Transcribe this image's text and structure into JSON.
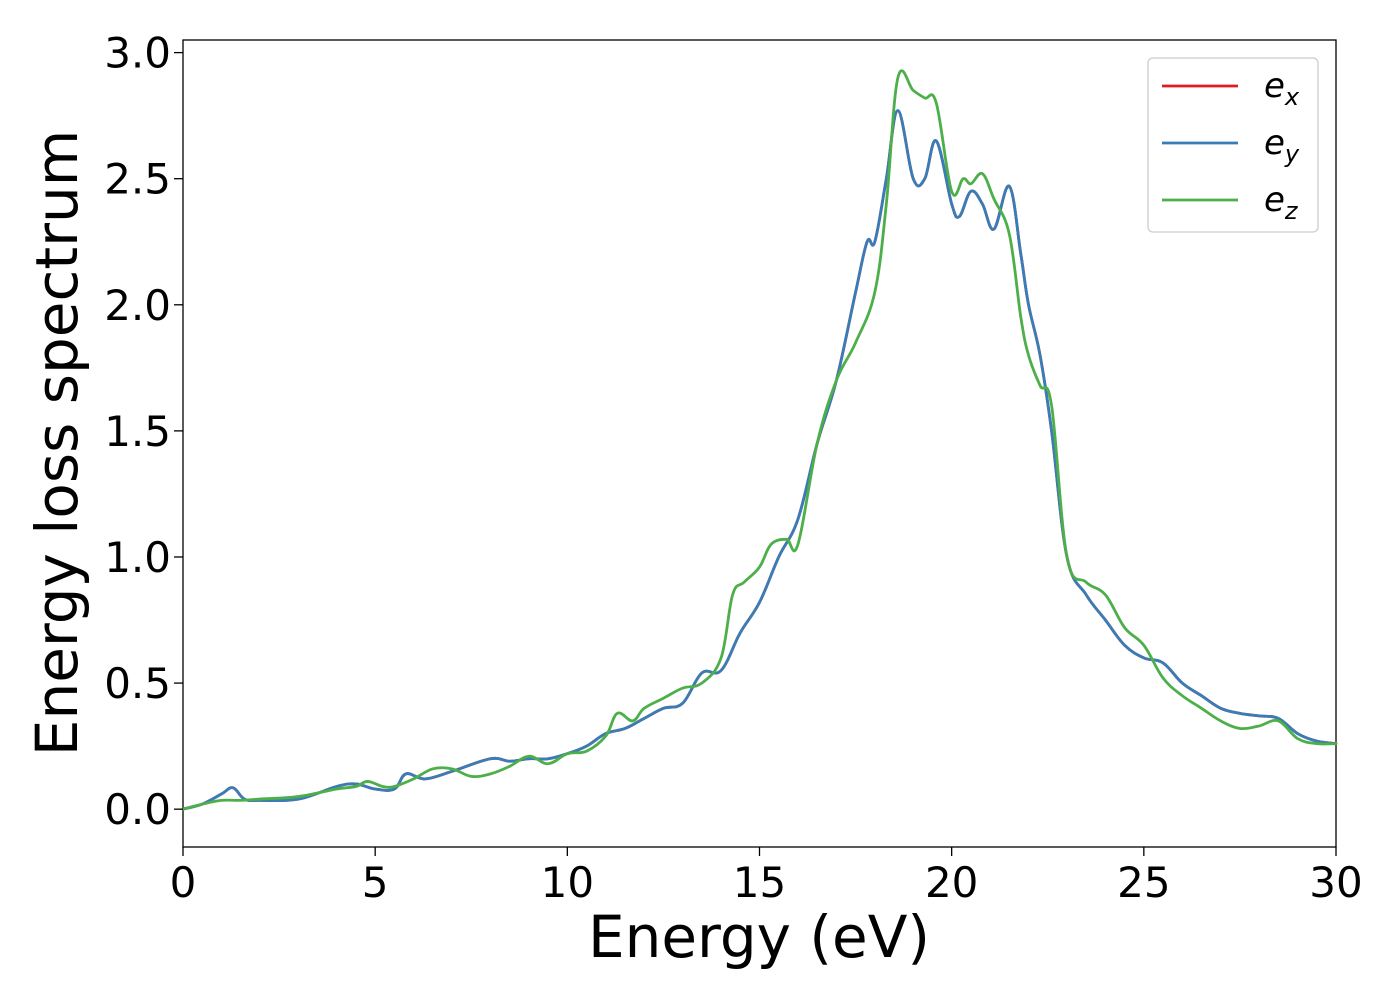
{
  "chart_data": {
    "type": "line",
    "xlabel": "Energy (eV)",
    "ylabel": "Energy loss spectrum",
    "xlim": [
      0,
      30
    ],
    "ylim": [
      -0.15,
      3.05
    ],
    "xticks": [
      0,
      5,
      10,
      15,
      20,
      25,
      30
    ],
    "yticks": [
      0.0,
      0.5,
      1.0,
      1.5,
      2.0,
      2.5,
      3.0
    ],
    "xtick_labels": [
      "0",
      "5",
      "10",
      "15",
      "20",
      "25",
      "30"
    ],
    "ytick_labels": [
      "0.0",
      "0.5",
      "1.0",
      "1.5",
      "2.0",
      "2.5",
      "3.0"
    ],
    "grid": false,
    "legend_position": "top-right",
    "series": [
      {
        "name": "e_x",
        "legend_main": "e",
        "legend_sub": "x",
        "color": "#e41a1c",
        "x": [
          0,
          0.5,
          1.0,
          1.3,
          1.6,
          2.0,
          3.0,
          4.0,
          4.5,
          5.0,
          5.5,
          5.8,
          6.3,
          7.0,
          8.0,
          8.5,
          9.0,
          9.5,
          10.0,
          10.5,
          11.0,
          11.5,
          12.0,
          12.5,
          13.0,
          13.5,
          14.0,
          14.5,
          15.0,
          15.5,
          16.0,
          16.5,
          17.0,
          17.5,
          17.8,
          18.0,
          18.3,
          18.6,
          19.0,
          19.3,
          19.6,
          20.0,
          20.2,
          20.5,
          20.8,
          21.1,
          21.5,
          21.8,
          22.0,
          22.3,
          22.6,
          23.0,
          23.5,
          24.0,
          24.5,
          25.0,
          25.5,
          26.0,
          26.5,
          27.0,
          27.5,
          28.0,
          28.5,
          29.0,
          29.5,
          30.0
        ],
        "y": [
          0.0,
          0.02,
          0.06,
          0.085,
          0.04,
          0.035,
          0.04,
          0.09,
          0.1,
          0.08,
          0.08,
          0.14,
          0.12,
          0.15,
          0.2,
          0.19,
          0.2,
          0.2,
          0.22,
          0.25,
          0.3,
          0.32,
          0.36,
          0.4,
          0.42,
          0.54,
          0.55,
          0.7,
          0.82,
          1.0,
          1.15,
          1.45,
          1.7,
          2.05,
          2.25,
          2.25,
          2.5,
          2.77,
          2.5,
          2.5,
          2.65,
          2.4,
          2.35,
          2.45,
          2.4,
          2.3,
          2.47,
          2.2,
          2.0,
          1.8,
          1.5,
          1.0,
          0.85,
          0.75,
          0.65,
          0.6,
          0.58,
          0.5,
          0.45,
          0.4,
          0.38,
          0.37,
          0.36,
          0.3,
          0.27,
          0.26
        ]
      },
      {
        "name": "e_y",
        "legend_main": "e",
        "legend_sub": "y",
        "color": "#377eb8",
        "x": [
          0,
          0.5,
          1.0,
          1.3,
          1.6,
          2.0,
          3.0,
          4.0,
          4.5,
          5.0,
          5.5,
          5.8,
          6.3,
          7.0,
          8.0,
          8.5,
          9.0,
          9.5,
          10.0,
          10.5,
          11.0,
          11.5,
          12.0,
          12.5,
          13.0,
          13.5,
          14.0,
          14.5,
          15.0,
          15.5,
          16.0,
          16.5,
          17.0,
          17.5,
          17.8,
          18.0,
          18.3,
          18.6,
          19.0,
          19.3,
          19.6,
          20.0,
          20.2,
          20.5,
          20.8,
          21.1,
          21.5,
          21.8,
          22.0,
          22.3,
          22.6,
          23.0,
          23.5,
          24.0,
          24.5,
          25.0,
          25.5,
          26.0,
          26.5,
          27.0,
          27.5,
          28.0,
          28.5,
          29.0,
          29.5,
          30.0
        ],
        "y": [
          0.0,
          0.02,
          0.06,
          0.085,
          0.04,
          0.035,
          0.04,
          0.09,
          0.1,
          0.08,
          0.08,
          0.14,
          0.12,
          0.15,
          0.2,
          0.19,
          0.2,
          0.2,
          0.22,
          0.25,
          0.3,
          0.32,
          0.36,
          0.4,
          0.42,
          0.54,
          0.55,
          0.7,
          0.82,
          1.0,
          1.15,
          1.45,
          1.7,
          2.05,
          2.25,
          2.25,
          2.5,
          2.77,
          2.5,
          2.5,
          2.65,
          2.4,
          2.35,
          2.45,
          2.4,
          2.3,
          2.47,
          2.2,
          2.0,
          1.8,
          1.5,
          1.0,
          0.85,
          0.75,
          0.65,
          0.6,
          0.58,
          0.5,
          0.45,
          0.4,
          0.38,
          0.37,
          0.36,
          0.3,
          0.27,
          0.26
        ]
      },
      {
        "name": "e_z",
        "legend_main": "e",
        "legend_sub": "z",
        "color": "#4daf4a",
        "x": [
          0,
          0.5,
          1.0,
          1.5,
          2.0,
          3.0,
          4.0,
          4.5,
          4.8,
          5.2,
          5.5,
          6.0,
          6.5,
          7.0,
          7.5,
          8.0,
          8.5,
          9.0,
          9.5,
          10.0,
          10.5,
          11.0,
          11.3,
          11.7,
          12.0,
          12.5,
          13.0,
          13.5,
          14.0,
          14.3,
          14.6,
          15.0,
          15.3,
          15.7,
          16.0,
          16.5,
          17.0,
          17.5,
          18.0,
          18.3,
          18.6,
          19.0,
          19.3,
          19.6,
          20.0,
          20.3,
          20.5,
          20.8,
          21.1,
          21.5,
          21.8,
          22.0,
          22.3,
          22.6,
          23.0,
          23.5,
          24.0,
          24.5,
          25.0,
          25.5,
          26.0,
          26.5,
          27.0,
          27.5,
          28.0,
          28.5,
          29.0,
          29.5,
          30.0
        ],
        "y": [
          0.0,
          0.02,
          0.035,
          0.035,
          0.04,
          0.05,
          0.08,
          0.09,
          0.11,
          0.09,
          0.09,
          0.12,
          0.16,
          0.16,
          0.13,
          0.14,
          0.17,
          0.21,
          0.18,
          0.22,
          0.23,
          0.29,
          0.38,
          0.35,
          0.4,
          0.44,
          0.48,
          0.5,
          0.6,
          0.85,
          0.9,
          0.96,
          1.05,
          1.07,
          1.05,
          1.45,
          1.7,
          1.85,
          2.05,
          2.4,
          2.9,
          2.85,
          2.82,
          2.8,
          2.45,
          2.5,
          2.48,
          2.52,
          2.42,
          2.28,
          1.95,
          1.8,
          1.68,
          1.6,
          1.0,
          0.9,
          0.85,
          0.72,
          0.65,
          0.52,
          0.45,
          0.4,
          0.35,
          0.32,
          0.33,
          0.35,
          0.28,
          0.26,
          0.26
        ]
      }
    ]
  }
}
